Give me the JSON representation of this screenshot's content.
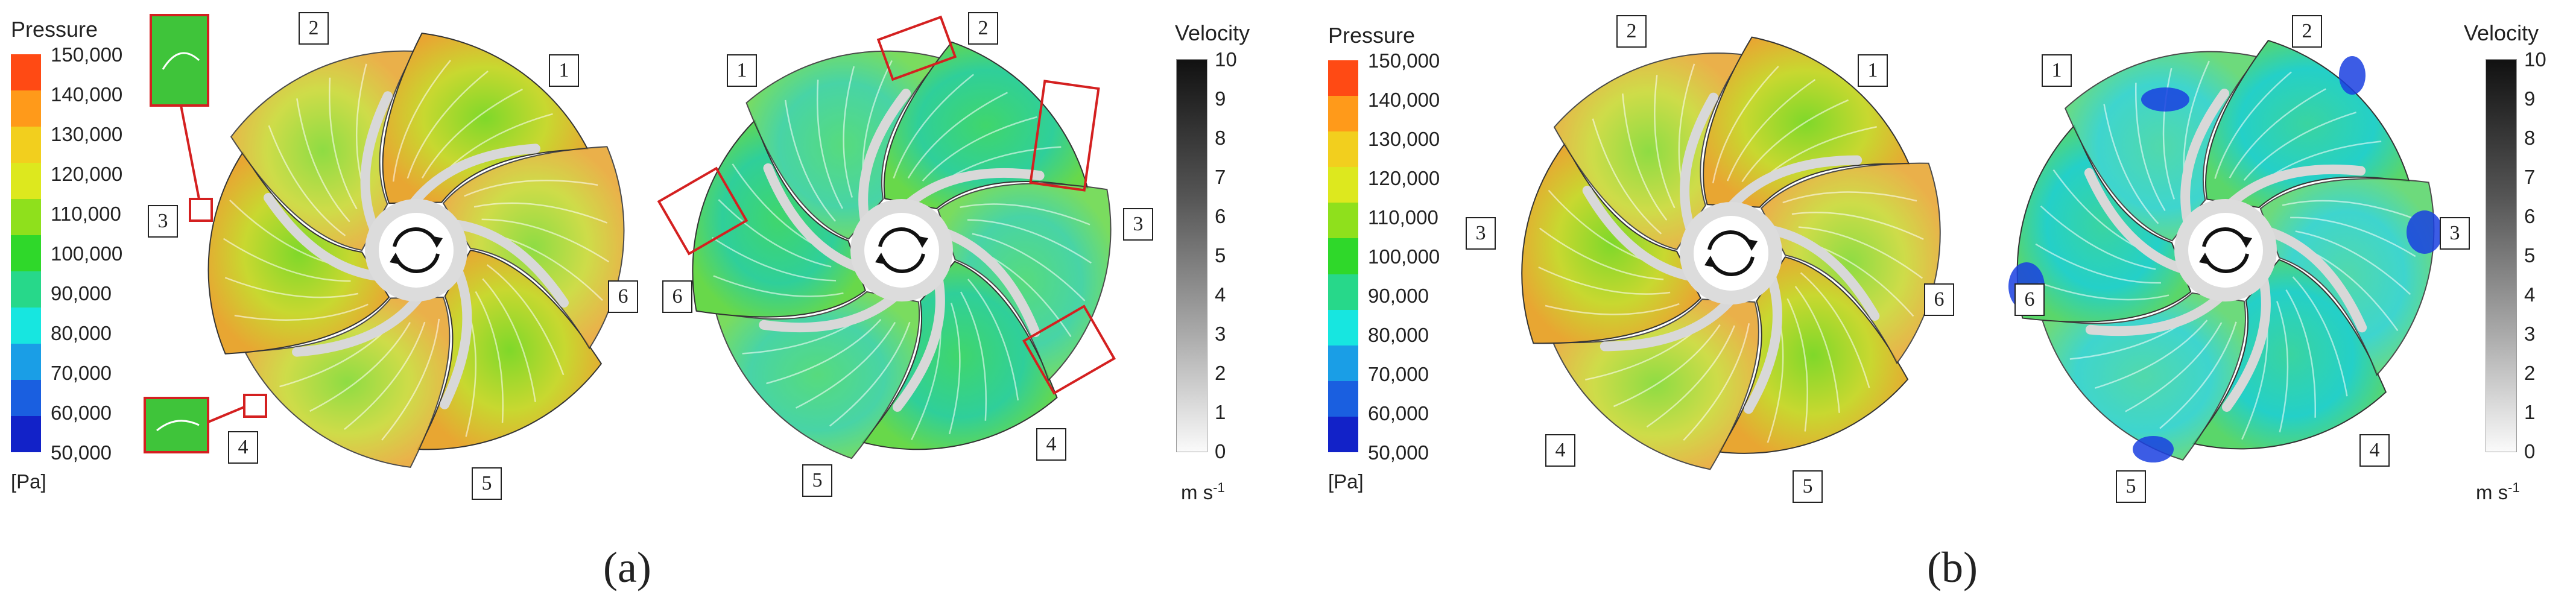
{
  "pressure_legend": {
    "title": "Pressure",
    "unit": "[Pa]",
    "ticks": [
      "150,000",
      "140,000",
      "130,000",
      "120,000",
      "110,000",
      "100,000",
      "90,000",
      "80,000",
      "70,000",
      "60,000",
      "50,000"
    ],
    "colors": [
      "#ff4a14",
      "#ff9a1a",
      "#f2cf1e",
      "#dde81e",
      "#8fe01c",
      "#2fd82a",
      "#27d88a",
      "#17e6e0",
      "#1a9ee6",
      "#1a5fe0",
      "#1222c8"
    ]
  },
  "velocity_legend": {
    "title": "Velocity",
    "unit": "m s",
    "unit_exp": "-1",
    "ticks": [
      "10",
      "9",
      "8",
      "7",
      "6",
      "5",
      "4",
      "3",
      "2",
      "1",
      "0"
    ]
  },
  "panels": [
    {
      "label": "(a)",
      "left_impeller": {
        "blades": [
          "1",
          "2",
          "3",
          "4",
          "5",
          "6"
        ]
      },
      "right_impeller": {
        "blades": [
          "1",
          "2",
          "3",
          "4",
          "5",
          "6"
        ]
      }
    },
    {
      "label": "(b)",
      "left_impeller": {
        "blades": [
          "1",
          "2",
          "3",
          "4",
          "5",
          "6"
        ]
      },
      "right_impeller": {
        "blades": [
          "1",
          "2",
          "3",
          "4",
          "5",
          "6"
        ]
      }
    }
  ],
  "colors": {
    "highlight_box": "#d42020",
    "low_pressure": "#1a40e0",
    "hub": "#dcdcdc"
  }
}
